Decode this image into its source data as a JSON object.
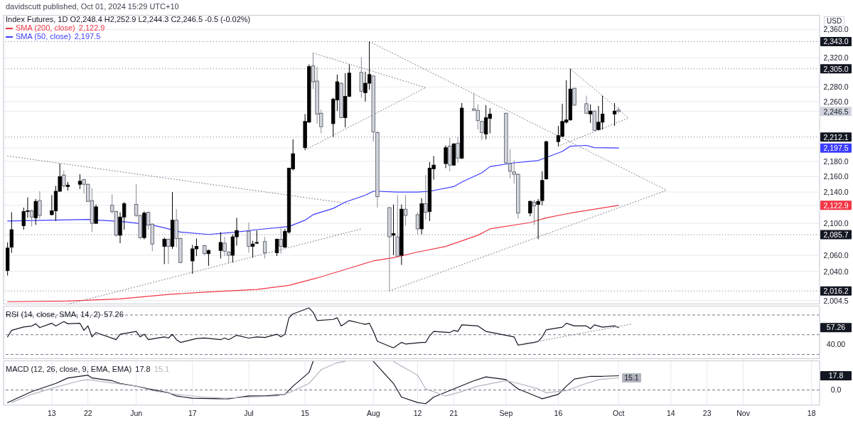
{
  "chart_data": [
    {
      "type": "candlestick",
      "subtitle": "davidscutt published, Oct 01, 2024 15:29 UTC+10",
      "title": "Index Futures, 1D  O2,248.4  H2,252.9  L2,244.3  C2,246.5  -0.5 (-0.02%)",
      "x": [
        "2024-05-02",
        "2024-05-03",
        "2024-05-06",
        "2024-05-07",
        "2024-05-08",
        "2024-05-09",
        "2024-05-10",
        "2024-05-13",
        "2024-05-14",
        "2024-05-15",
        "2024-05-16",
        "2024-05-17",
        "2024-05-20",
        "2024-05-21",
        "2024-05-22",
        "2024-05-23",
        "2024-05-24",
        "2024-05-28",
        "2024-05-29",
        "2024-05-30",
        "2024-05-31",
        "2024-06-03",
        "2024-06-04",
        "2024-06-05",
        "2024-06-06",
        "2024-06-07",
        "2024-06-10",
        "2024-06-11",
        "2024-06-12",
        "2024-06-13",
        "2024-06-14",
        "2024-06-17",
        "2024-06-18",
        "2024-06-20",
        "2024-06-21",
        "2024-06-24",
        "2024-06-25",
        "2024-06-26",
        "2024-06-27",
        "2024-06-28",
        "2024-07-01",
        "2024-07-02",
        "2024-07-03",
        "2024-07-05",
        "2024-07-08",
        "2024-07-09",
        "2024-07-10",
        "2024-07-11",
        "2024-07-12",
        "2024-07-15",
        "2024-07-16",
        "2024-07-17",
        "2024-07-18",
        "2024-07-19",
        "2024-07-22",
        "2024-07-23",
        "2024-07-24",
        "2024-07-25",
        "2024-07-26",
        "2024-07-29",
        "2024-07-30",
        "2024-07-31",
        "2024-08-01",
        "2024-08-02",
        "2024-08-05",
        "2024-08-06",
        "2024-08-07",
        "2024-08-08",
        "2024-08-09",
        "2024-08-12",
        "2024-08-13",
        "2024-08-14",
        "2024-08-15",
        "2024-08-16",
        "2024-08-19",
        "2024-08-20",
        "2024-08-21",
        "2024-08-22",
        "2024-08-23",
        "2024-08-26",
        "2024-08-27",
        "2024-08-28",
        "2024-08-29",
        "2024-08-30",
        "2024-09-03",
        "2024-09-04",
        "2024-09-05",
        "2024-09-06",
        "2024-09-09",
        "2024-09-10",
        "2024-09-11",
        "2024-09-12",
        "2024-09-13",
        "2024-09-16",
        "2024-09-17",
        "2024-09-18",
        "2024-09-19",
        "2024-09-20",
        "2024-09-23",
        "2024-09-24",
        "2024-09-25",
        "2024-09-26",
        "2024-09-27",
        "2024-09-30",
        "2024-10-01"
      ],
      "ohlc": [
        [
          2041,
          2076,
          2035,
          2069
        ],
        [
          2070,
          2114,
          2063,
          2092
        ],
        [
          2097,
          2120,
          2092,
          2115
        ],
        [
          2115,
          2133,
          2107,
          2116
        ],
        [
          2116,
          2118,
          2096,
          2108
        ],
        [
          2107,
          2131,
          2098,
          2128
        ],
        [
          2129,
          2141,
          2106,
          2110
        ],
        [
          2111,
          2136,
          2110,
          2116
        ],
        [
          2116,
          2148,
          2103,
          2141
        ],
        [
          2141,
          2177,
          2140,
          2160
        ],
        [
          2162,
          2168,
          2145,
          2148
        ],
        [
          2147,
          2153,
          2142,
          2149
        ],
        [
          2150,
          2163,
          2144,
          2154
        ],
        [
          2156,
          2157,
          2138,
          2150
        ],
        [
          2150,
          2151,
          2127,
          2128
        ],
        [
          2129,
          2145,
          2089,
          2100
        ],
        [
          2100,
          2124,
          2099,
          2121
        ],
        [
          2123,
          2137,
          2112,
          2115
        ],
        [
          2115,
          2116,
          2083,
          2085
        ],
        [
          2085,
          2114,
          2075,
          2108
        ],
        [
          2108,
          2127,
          2092,
          2125
        ],
        [
          2124,
          2150,
          2108,
          2110
        ],
        [
          2110,
          2111,
          2080,
          2082
        ],
        [
          2082,
          2115,
          2080,
          2113
        ],
        [
          2114,
          2115,
          2092,
          2098
        ],
        [
          2099,
          2100,
          2065,
          2074
        ],
        [
          2071,
          2082,
          2049,
          2080
        ],
        [
          2080,
          2081,
          2049,
          2071
        ],
        [
          2071,
          2140,
          2068,
          2104
        ],
        [
          2104,
          2118,
          2070,
          2081
        ],
        [
          2081,
          2082,
          2050,
          2051
        ],
        [
          2053,
          2073,
          2037,
          2068
        ],
        [
          2068,
          2081,
          2059,
          2071
        ],
        [
          2072,
          2073,
          2060,
          2062
        ],
        [
          2062,
          2067,
          2047,
          2066
        ],
        [
          2066,
          2089,
          2056,
          2076
        ],
        [
          2075,
          2083,
          2059,
          2065
        ],
        [
          2064,
          2065,
          2050,
          2060
        ],
        [
          2060,
          2086,
          2051,
          2083
        ],
        [
          2083,
          2107,
          2072,
          2091
        ],
        [
          2090,
          2101,
          2063,
          2071
        ],
        [
          2071,
          2078,
          2057,
          2074
        ],
        [
          2075,
          2091,
          2074,
          2076
        ],
        [
          2077,
          2083,
          2056,
          2063
        ],
        [
          2063,
          2081,
          2059,
          2080
        ],
        [
          2080,
          2094,
          2062,
          2071
        ],
        [
          2070,
          2093,
          2069,
          2090
        ],
        [
          2089,
          2171,
          2087,
          2171
        ],
        [
          2170,
          2209,
          2168,
          2190
        ],
        [
          2198,
          2243,
          2195,
          2233
        ],
        [
          2232,
          2311,
          2231,
          2308
        ],
        [
          2309,
          2327,
          2277,
          2287
        ],
        [
          2288,
          2308,
          2230,
          2243
        ],
        [
          2244,
          2249,
          2217,
          2226
        ],
        [
          2230,
          2265,
          2212,
          2263
        ],
        [
          2262,
          2297,
          2247,
          2287
        ],
        [
          2285,
          2286,
          2237,
          2238
        ],
        [
          2238,
          2299,
          2225,
          2267
        ],
        [
          2267,
          2311,
          2266,
          2299
        ],
        [
          2300,
          2321,
          2265,
          2274
        ],
        [
          2272,
          2301,
          2260,
          2285
        ],
        [
          2285,
          2343,
          2276,
          2297
        ],
        [
          2295,
          2296,
          2206,
          2219
        ],
        [
          2218,
          2220,
          2120,
          2134
        ],
        [
          2120,
          2121,
          2016.2,
          2083
        ],
        [
          2085,
          2124,
          2060,
          2087
        ],
        [
          2083,
          2136,
          2058,
          2059
        ],
        [
          2060,
          2124,
          2048,
          2118
        ],
        [
          2118,
          2136,
          2097,
          2110
        ],
        [
          2111,
          2114,
          2085.7,
          2093
        ],
        [
          2093,
          2132,
          2086,
          2125
        ],
        [
          2125,
          2162,
          2105,
          2114
        ],
        [
          2115,
          2179,
          2103,
          2171
        ],
        [
          2170,
          2187,
          2156,
          2175
        ],
        [
          2177,
          2201,
          2171,
          2198
        ],
        [
          2200,
          2211,
          2167,
          2175
        ],
        [
          2175,
          2204,
          2174,
          2203
        ],
        [
          2204,
          2212,
          2178,
          2184
        ],
        [
          2184,
          2258,
          2183,
          2251
        ],
        [
          2250,
          2272,
          2247,
          2248
        ],
        [
          2248,
          2256,
          2222,
          2234
        ],
        [
          2233,
          2234,
          2208,
          2218
        ],
        [
          2216,
          2255,
          2209,
          2238
        ],
        [
          2237,
          2251,
          2217,
          2243
        ],
        [
          2244,
          2245,
          2177,
          2178
        ],
        [
          2177,
          2196,
          2158,
          2167
        ],
        [
          2166,
          2181,
          2151,
          2163
        ],
        [
          2163,
          2164,
          2106,
          2113
        ],
        [
          2113,
          2129,
          2109,
          2128
        ],
        [
          2127,
          2130,
          2098,
          2122
        ],
        [
          2124,
          2131,
          2080,
          2128
        ],
        [
          2129,
          2167,
          2123,
          2155
        ],
        [
          2157,
          2207,
          2156,
          2206
        ],
        [
          2206,
          2227,
          2200,
          2214
        ],
        [
          2213,
          2257,
          2212,
          2233
        ],
        [
          2232,
          2289,
          2230,
          2235
        ],
        [
          2235,
          2305,
          2234,
          2277
        ],
        [
          2278,
          2279,
          2254,
          2255
        ],
        [
          2257,
          2268,
          2243,
          2244
        ],
        [
          2243,
          2256,
          2231,
          2247
        ],
        [
          2247,
          2248,
          2220,
          2221
        ],
        [
          2222,
          2254,
          2221,
          2232
        ],
        [
          2232,
          2268,
          2222,
          2243
        ],
        [
          2243,
          2258,
          2227,
          2247
        ],
        [
          2248.4,
          2252.9,
          2244.3,
          2246.5
        ]
      ],
      "colors": [
        "#000000",
        "#000000",
        "#000000",
        "#000000",
        "#d1d4dc",
        "#000000",
        "#d1d4dc",
        "#000000",
        "#000000",
        "#000000",
        "#d1d4dc",
        "#000000",
        "#000000",
        "#d1d4dc",
        "#d1d4dc",
        "#d1d4dc",
        "#000000",
        "#d1d4dc",
        "#d1d4dc",
        "#000000",
        "#000000",
        "#d1d4dc",
        "#d1d4dc",
        "#000000",
        "#d1d4dc",
        "#d1d4dc",
        "#000000",
        "#d1d4dc",
        "#000000",
        "#d1d4dc",
        "#d1d4dc",
        "#000000",
        "#000000",
        "#d1d4dc",
        "#000000",
        "#000000",
        "#d1d4dc",
        "#d1d4dc",
        "#000000",
        "#000000",
        "#d1d4dc",
        "#000000",
        "#000000",
        "#d1d4dc",
        "#000000",
        "#d1d4dc",
        "#000000",
        "#000000",
        "#000000",
        "#000000",
        "#000000",
        "#d1d4dc",
        "#d1d4dc",
        "#d1d4dc",
        "#000000",
        "#000000",
        "#d1d4dc",
        "#000000",
        "#000000",
        "#d1d4dc",
        "#000000",
        "#000000",
        "#d1d4dc",
        "#d1d4dc",
        "#d1d4dc",
        "#000000",
        "#d1d4dc",
        "#000000",
        "#d1d4dc",
        "#d1d4dc",
        "#000000",
        "#d1d4dc",
        "#000000",
        "#000000",
        "#000000",
        "#d1d4dc",
        "#000000",
        "#d1d4dc",
        "#000000",
        "#d1d4dc",
        "#d1d4dc",
        "#d1d4dc",
        "#000000",
        "#000000",
        "#d1d4dc",
        "#d1d4dc",
        "#d1d4dc",
        "#d1d4dc",
        "#000000",
        "#d1d4dc",
        "#000000",
        "#000000",
        "#000000",
        "#000000",
        "#000000",
        "#000000",
        "#000000",
        "#d1d4dc",
        "#d1d4dc",
        "#000000",
        "#d1d4dc",
        "#000000",
        "#000000",
        "#000000",
        "#d1d4dc"
      ],
      "series": [
        {
          "name": "SMA (200, close)",
          "type": "line",
          "color": "#f23645",
          "x": [
            "2024-05-02",
            "2024-05-17",
            "2024-05-30",
            "2024-06-11",
            "2024-06-21",
            "2024-07-03",
            "2024-07-11",
            "2024-07-18",
            "2024-07-26",
            "2024-08-01",
            "2024-08-06",
            "2024-08-12",
            "2024-08-19",
            "2024-08-27",
            "2024-08-30",
            "2024-09-09",
            "2024-09-13",
            "2024-09-19",
            "2024-10-01"
          ],
          "values": [
            2003,
            2004,
            2006.5,
            2012,
            2015,
            2018,
            2023,
            2032,
            2044,
            2053,
            2057,
            2064,
            2071,
            2085,
            2093,
            2101,
            2107,
            2113,
            2122.9
          ]
        },
        {
          "name": "SMA (50, close)",
          "type": "line",
          "color": "#3c3cff",
          "x": [
            "2024-05-02",
            "2024-05-22",
            "2024-05-31",
            "2024-06-07",
            "2024-06-11",
            "2024-06-14",
            "2024-06-21",
            "2024-06-28",
            "2024-07-03",
            "2024-07-11",
            "2024-07-15",
            "2024-07-17",
            "2024-07-22",
            "2024-07-25",
            "2024-07-30",
            "2024-08-01",
            "2024-08-02",
            "2024-08-07",
            "2024-08-12",
            "2024-08-15",
            "2024-08-21",
            "2024-08-23",
            "2024-08-28",
            "2024-08-30",
            "2024-09-05",
            "2024-09-11",
            "2024-09-13",
            "2024-09-17",
            "2024-09-19",
            "2024-09-23",
            "2024-09-25",
            "2024-10-01"
          ],
          "values": [
            2103,
            2105,
            2102,
            2098,
            2093,
            2089,
            2086,
            2089,
            2092,
            2096,
            2104,
            2111,
            2119,
            2127,
            2136,
            2141,
            2141,
            2140,
            2140,
            2141,
            2147,
            2153,
            2165,
            2173,
            2178,
            2181,
            2185,
            2193,
            2200,
            2201,
            2198,
            2197.5
          ]
        },
        {
          "type": "line",
          "color": "#787b86",
          "line_style": "dotted",
          "x": [
            "2024-05-02",
            "2024-07-26"
          ],
          "values": [
            2187,
            2125
          ]
        },
        {
          "type": "line",
          "color": "#787b86",
          "line_style": "dotted",
          "x": [
            "2024-05-17",
            "2024-07-29"
          ],
          "values": [
            2000,
            2093
          ]
        },
        {
          "type": "line",
          "color": "#787b86",
          "line_style": "dotted",
          "x": [
            "2024-07-17",
            "2024-08-14"
          ],
          "values": [
            2327,
            2279
          ]
        },
        {
          "type": "line",
          "color": "#787b86",
          "line_style": "dotted",
          "x": [
            "2024-07-15",
            "2024-08-14"
          ],
          "values": [
            2195,
            2279
          ]
        },
        {
          "type": "line",
          "color": "#787b86",
          "line_style": "dotted",
          "x": [
            "2024-07-31",
            "2024-10-13"
          ],
          "values": [
            2343,
            2142.3
          ]
        },
        {
          "type": "line",
          "color": "#787b86",
          "line_style": "dotted",
          "x": [
            "2024-08-05",
            "2024-10-13"
          ],
          "values": [
            2016.2,
            2142.3
          ]
        },
        {
          "type": "line",
          "color": "#787b86",
          "line_style": "dotted",
          "x": [
            "2024-09-19",
            "2024-10-03T12:00"
          ],
          "values": [
            2305,
            2237.6
          ]
        },
        {
          "type": "line",
          "color": "#787b86",
          "line_style": "dotted",
          "x": [
            "2024-09-16",
            "2024-10-03T12:00"
          ],
          "values": [
            2200,
            2237.6
          ]
        }
      ],
      "ref_lines": [
        {
          "axis": "y",
          "value": 2343.0,
          "label": "2,343.0",
          "color": "#787b86",
          "line_style": "dotted"
        },
        {
          "axis": "y",
          "value": 2305.0,
          "label": "2,305.0",
          "color": "#787b86",
          "line_style": "dotted"
        },
        {
          "axis": "y",
          "value": 2212.1,
          "label": "2,212.1",
          "color": "#787b86",
          "line_style": "dotted"
        },
        {
          "axis": "y",
          "value": 2085.7,
          "label": "2,085.7",
          "color": "#787b86",
          "line_style": "dotted"
        },
        {
          "axis": "y",
          "value": 2016.2,
          "label": "2,016.2",
          "color": "#787b86",
          "line_style": "dotted"
        }
      ],
      "annotations": [
        "USD"
      ],
      "xlim": [
        "2024-05-01",
        "2024-11-20"
      ],
      "xticks": [
        {
          "value": "2024-05-13",
          "label": null
        },
        {
          "value": "2024-05-22",
          "label": null
        },
        {
          "value": "2024-06-03",
          "label": null
        },
        {
          "value": "2024-06-17",
          "label": null
        },
        {
          "value": "2024-07-01",
          "label": null
        },
        {
          "value": "2024-07-15",
          "label": null
        },
        {
          "value": "2024-08-01",
          "label": null
        },
        {
          "value": "2024-08-12",
          "label": null
        },
        {
          "value": "2024-08-21",
          "label": null
        },
        {
          "value": "2024-09-03",
          "label": null
        },
        {
          "value": "2024-09-16",
          "label": null
        },
        {
          "value": "2024-10-01",
          "label": null
        },
        {
          "value": "2024-10-14",
          "label": null
        },
        {
          "value": "2024-10-23",
          "label": null
        },
        {
          "value": "2024-11-01",
          "label": null
        },
        {
          "value": "2024-11-18",
          "label": null
        }
      ],
      "ylim": [
        2000,
        2381
      ],
      "yticks": [
        {
          "value": 2004.5,
          "label": "2,004.5"
        },
        {
          "value": 2040,
          "label": "2,040.0"
        },
        {
          "value": 2060,
          "label": "2,060.0"
        },
        {
          "value": 2100,
          "label": "2,100.0"
        },
        {
          "value": 2122.9,
          "label": "2,122.9"
        },
        {
          "value": 2140,
          "label": "2,140.0"
        },
        {
          "value": 2160,
          "label": "2,160.0"
        },
        {
          "value": 2180,
          "label": "2,180.0"
        },
        {
          "value": 2197.5,
          "label": "2,197.5"
        },
        {
          "value": 2246.5,
          "label": "2,246.5"
        },
        {
          "value": 2260,
          "label": "2,260.0"
        },
        {
          "value": 2280,
          "label": "2,280.0"
        },
        {
          "value": 2320,
          "label": "2,320.0"
        },
        {
          "value": 2360,
          "label": "2,360.0"
        }
      ],
      "log": true,
      "grid": true,
      "legend": "top left",
      "tick_labels": "y"
    },
    {
      "type": "line",
      "title": "RSI (14, close, SMA, 14, 2)",
      "series": [
        {
          "color": "#131722",
          "x": [
            "2024-05-02",
            "2024-05-03",
            "2024-05-06",
            "2024-05-08",
            "2024-05-09",
            "2024-05-10",
            "2024-05-13",
            "2024-05-14",
            "2024-05-16",
            "2024-05-17",
            "2024-05-20",
            "2024-05-21",
            "2024-05-22",
            "2024-05-23",
            "2024-05-24",
            "2024-05-29",
            "2024-05-30",
            "2024-06-03",
            "2024-06-04",
            "2024-06-05",
            "2024-06-06",
            "2024-06-10",
            "2024-06-11",
            "2024-06-12",
            "2024-06-13",
            "2024-06-14",
            "2024-06-18",
            "2024-06-20",
            "2024-06-24",
            "2024-06-25",
            "2024-06-26",
            "2024-06-28",
            "2024-07-01",
            "2024-07-03",
            "2024-07-05",
            "2024-07-08",
            "2024-07-09",
            "2024-07-10",
            "2024-07-11",
            "2024-07-12",
            "2024-07-16",
            "2024-07-17",
            "2024-07-18",
            "2024-07-22",
            "2024-07-23",
            "2024-07-24",
            "2024-07-25",
            "2024-07-26",
            "2024-07-30",
            "2024-07-31",
            "2024-08-01",
            "2024-08-02",
            "2024-08-05",
            "2024-08-06",
            "2024-08-08",
            "2024-08-09",
            "2024-08-13",
            "2024-08-14",
            "2024-08-15",
            "2024-08-16",
            "2024-08-20",
            "2024-08-21",
            "2024-08-22",
            "2024-08-23",
            "2024-08-27",
            "2024-08-28",
            "2024-08-29",
            "2024-09-03",
            "2024-09-05",
            "2024-09-06",
            "2024-09-10",
            "2024-09-11",
            "2024-09-12",
            "2024-09-13",
            "2024-09-17",
            "2024-09-18",
            "2024-09-20",
            "2024-09-23",
            "2024-09-24",
            "2024-09-25",
            "2024-09-27",
            "2024-09-30",
            "2024-10-01"
          ],
          "values": [
            47.8,
            54.4,
            57.8,
            58.8,
            61.1,
            57.2,
            61.6,
            58.9,
            63.3,
            61.1,
            61.6,
            54.4,
            58.9,
            47.8,
            52.2,
            45.0,
            50.5,
            53.3,
            47.8,
            50.5,
            45.0,
            47.8,
            46.6,
            50.5,
            45.0,
            42.2,
            46.1,
            46.6,
            45.0,
            46.6,
            45.0,
            49.4,
            46.6,
            47.8,
            47.2,
            50.5,
            47.8,
            50.5,
            67.2,
            71.1,
            77.2,
            72.7,
            64.4,
            65.5,
            67.2,
            58.9,
            61.6,
            64.4,
            60.5,
            61.6,
            53.3,
            43.3,
            38.3,
            36.7,
            42.2,
            40.6,
            42.2,
            42.2,
            48.9,
            53.3,
            52.2,
            54.4,
            53.3,
            60.0,
            58.9,
            56.1,
            53.3,
            49.4,
            47.8,
            39.4,
            42.2,
            43.3,
            47.8,
            55.0,
            57.7,
            61.6,
            58.9,
            58.9,
            56.1,
            60.0,
            57.7,
            58.9,
            57.26
          ]
        },
        {
          "type": "line",
          "color": "#787b86",
          "line_style": "dotted",
          "x": [
            "2024-09-06",
            "2024-10-04"
          ],
          "values": [
            39.7,
            60.6
          ]
        }
      ],
      "ref_lines": [
        {
          "axis": "y",
          "value": 70,
          "color": "#787b86",
          "line_style": "dashed"
        },
        {
          "axis": "y",
          "value": 50,
          "color": "#787b86",
          "line_style": "dashed"
        },
        {
          "axis": "y",
          "value": 30,
          "color": "#787b86",
          "line_style": "dashed"
        }
      ],
      "xlim": [
        "2024-05-01",
        "2024-11-20"
      ],
      "xticks": [
        {
          "value": "2024-05-13",
          "label": null
        },
        {
          "value": "2024-05-22",
          "label": null
        },
        {
          "value": "2024-06-03",
          "label": null
        },
        {
          "value": "2024-06-17",
          "label": null
        },
        {
          "value": "2024-07-01",
          "label": null
        },
        {
          "value": "2024-07-15",
          "label": null
        },
        {
          "value": "2024-08-01",
          "label": null
        },
        {
          "value": "2024-08-12",
          "label": null
        },
        {
          "value": "2024-08-21",
          "label": null
        },
        {
          "value": "2024-09-03",
          "label": null
        },
        {
          "value": "2024-09-16",
          "label": null
        },
        {
          "value": "2024-10-01",
          "label": null
        },
        {
          "value": "2024-10-14",
          "label": null
        },
        {
          "value": "2024-10-23",
          "label": null
        },
        {
          "value": "2024-11-01",
          "label": null
        },
        {
          "value": "2024-11-18",
          "label": null
        }
      ],
      "ylim": [
        25.3,
        79.4
      ],
      "yticks": [
        {
          "value": 40,
          "label": "40.00"
        },
        {
          "value": 57.26,
          "label": "57.26"
        }
      ],
      "grid": "x",
      "tick_labels": "y"
    },
    {
      "type": "line",
      "title": "MACD (12, 26, close, 9, EMA, EMA)",
      "series": [
        {
          "color": "#131722",
          "x": [
            "2024-05-02",
            "2024-05-08",
            "2024-05-14",
            "2024-05-17",
            "2024-05-22",
            "2024-05-23",
            "2024-05-28",
            "2024-05-30",
            "2024-06-03",
            "2024-06-06",
            "2024-06-11",
            "2024-06-13",
            "2024-06-17",
            "2024-06-24",
            "2024-06-26",
            "2024-07-01",
            "2024-07-05",
            "2024-07-10",
            "2024-07-12",
            "2024-07-16",
            "2024-07-17",
            "2024-07-24",
            "2024-08-01",
            "2024-08-06",
            "2024-08-08",
            "2024-08-12",
            "2024-08-14",
            "2024-08-16",
            "2024-08-21",
            "2024-08-26",
            "2024-08-29",
            "2024-09-03",
            "2024-09-06",
            "2024-09-11",
            "2024-09-12",
            "2024-09-16",
            "2024-09-18",
            "2024-09-20",
            "2024-09-24",
            "2024-09-27",
            "2024-10-01"
          ],
          "values": [
            -15.7,
            -2,
            8.2,
            15.0,
            18.5,
            15.0,
            11.6,
            8.2,
            4.8,
            1.4,
            -3.4,
            -7.5,
            -10.3,
            -11.0,
            -11.0,
            -7.5,
            -7.5,
            -5.5,
            4.8,
            21.9,
            35.6,
            null,
            35.6,
            8.2,
            -8.9,
            -15.7,
            -17.1,
            -8.9,
            1.4,
            11.6,
            16.4,
            13.0,
            1.4,
            -8.9,
            -11.0,
            -5.5,
            4.8,
            13.7,
            17.1,
            17.1,
            17.8
          ]
        },
        {
          "color": "#b2b5be",
          "x": [
            "2024-05-03",
            "2024-05-08",
            "2024-05-14",
            "2024-05-20",
            "2024-05-22",
            "2024-05-29",
            "2024-06-03",
            "2024-06-07",
            "2024-06-13",
            "2024-06-20",
            "2024-06-25",
            "2024-07-01",
            "2024-07-08",
            "2024-07-11",
            "2024-07-16",
            "2024-07-19",
            "2024-07-23",
            "2024-07-25",
            "2024-07-31",
            "2024-08-06",
            "2024-08-12",
            "2024-08-14",
            "2024-08-19",
            "2024-08-22",
            "2024-08-27",
            "2024-09-03",
            "2024-09-06",
            "2024-09-11",
            "2024-09-13",
            "2024-09-18",
            "2024-09-23",
            "2024-09-26",
            "2024-10-01"
          ],
          "values": [
            -15.7,
            -5.5,
            3.4,
            11.6,
            13.0,
            8.2,
            4.8,
            -0.7,
            -5.5,
            -8.9,
            -10.3,
            -8.9,
            -7.5,
            -3.4,
            8.2,
            25.3,
            34.2,
            35.6,
            null,
            35.6,
            18.5,
            1.4,
            -7.5,
            -3.4,
            4.8,
            11.6,
            8.2,
            1.4,
            -3.4,
            -0.7,
            8.2,
            13.0,
            15.1
          ],
          "value_labels": [
            null,
            null,
            null,
            null,
            null,
            null,
            null,
            null,
            null,
            null,
            null,
            null,
            null,
            null,
            null,
            null,
            null,
            null,
            null,
            null,
            null,
            null,
            null,
            null,
            null,
            null,
            null,
            null,
            null,
            null,
            null,
            null,
            "15.1"
          ]
        }
      ],
      "ref_lines": [
        {
          "axis": "y",
          "value": 0,
          "color": "#787b86",
          "line_style": "dashed"
        }
      ],
      "xlim": [
        "2024-05-01",
        "2024-11-20"
      ],
      "xticks": [
        {
          "value": "2024-05-13",
          "label": "13"
        },
        {
          "value": "2024-05-22",
          "label": "22"
        },
        {
          "value": "2024-06-03",
          "label": "Jun"
        },
        {
          "value": "2024-06-17",
          "label": "17"
        },
        {
          "value": "2024-07-01",
          "label": "Jul"
        },
        {
          "value": "2024-07-15",
          "label": "15"
        },
        {
          "value": "2024-08-01",
          "label": "Aug"
        },
        {
          "value": "2024-08-12",
          "label": "12"
        },
        {
          "value": "2024-08-21",
          "label": "21"
        },
        {
          "value": "2024-09-03",
          "label": "Sep"
        },
        {
          "value": "2024-09-16",
          "label": "16"
        },
        {
          "value": "2024-10-01",
          "label": "Oct"
        },
        {
          "value": "2024-10-14",
          "label": "14"
        },
        {
          "value": "2024-10-23",
          "label": "23"
        },
        {
          "value": "2024-11-01",
          "label": "Nov"
        },
        {
          "value": "2024-11-18",
          "label": "18"
        }
      ],
      "ylim": [
        -19.1,
        36.9
      ],
      "yticks": [
        {
          "value": 0,
          "label": "0.0"
        },
        {
          "value": 17.8,
          "label": "17.8"
        }
      ],
      "grid": "x"
    }
  ]
}
